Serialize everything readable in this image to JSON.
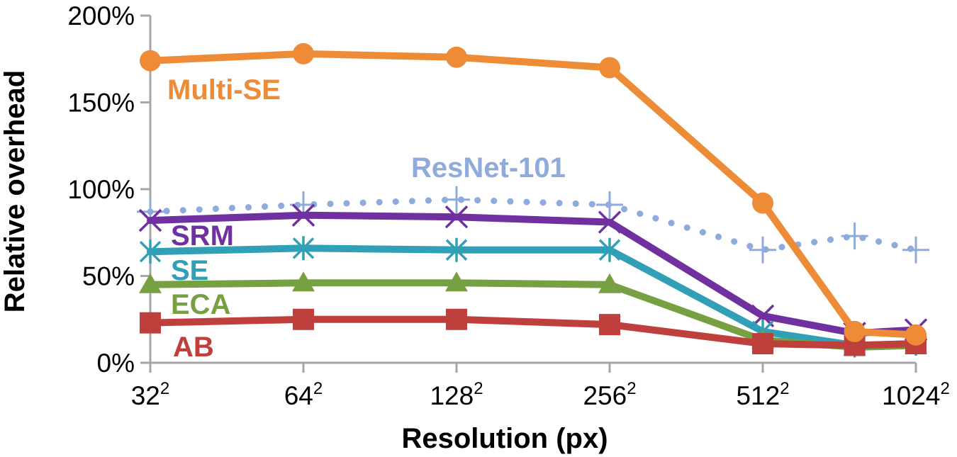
{
  "chart_data": {
    "type": "line",
    "title": "",
    "xlabel": "Resolution (px)",
    "ylabel": "Relative overhead",
    "x_ticks": [
      {
        "base": "32",
        "exp": "2"
      },
      {
        "base": "64",
        "exp": "2"
      },
      {
        "base": "128",
        "exp": "2"
      },
      {
        "base": "256",
        "exp": "2"
      },
      {
        "base": "512",
        "exp": "2"
      },
      {
        "base": "1024",
        "exp": "2"
      }
    ],
    "y_ticks": [
      "0%",
      "50%",
      "100%",
      "150%",
      "200%"
    ],
    "ylim": [
      0,
      200
    ],
    "grid": false,
    "series": [
      {
        "name": "ResNet-101",
        "color": "#8faadc",
        "marker": "plus",
        "dashed": true,
        "x": [
          0,
          1,
          2,
          3,
          4,
          4.6,
          5
        ],
        "y": [
          87,
          91,
          94,
          91,
          65,
          73,
          65
        ]
      },
      {
        "name": "SRM",
        "color": "#7030a0",
        "marker": "x",
        "dashed": false,
        "x": [
          0,
          1,
          2,
          3,
          4,
          4.6,
          5
        ],
        "y": [
          82,
          85,
          84,
          81,
          27,
          17,
          19
        ]
      },
      {
        "name": "SE",
        "color": "#31a0b7",
        "marker": "star",
        "dashed": false,
        "x": [
          0,
          1,
          2,
          3,
          4,
          4.6,
          5
        ],
        "y": [
          64,
          66,
          65,
          65,
          18,
          10,
          11
        ]
      },
      {
        "name": "ECA",
        "color": "#77a043",
        "marker": "triangle",
        "dashed": false,
        "x": [
          0,
          1,
          2,
          3,
          4,
          4.6,
          5
        ],
        "y": [
          45,
          46,
          46,
          45,
          13,
          9,
          10
        ]
      },
      {
        "name": "AB",
        "color": "#be3f3c",
        "marker": "square",
        "dashed": false,
        "x": [
          0,
          1,
          2,
          3,
          4,
          4.6,
          5
        ],
        "y": [
          23,
          25,
          25,
          22,
          11,
          10,
          11
        ]
      },
      {
        "name": "Multi-SE",
        "color": "#ed8b37",
        "marker": "circle",
        "dashed": false,
        "x": [
          0,
          1,
          2,
          3,
          4,
          4.6,
          5
        ],
        "y": [
          174,
          178,
          176,
          170,
          92,
          18,
          16
        ]
      }
    ]
  }
}
